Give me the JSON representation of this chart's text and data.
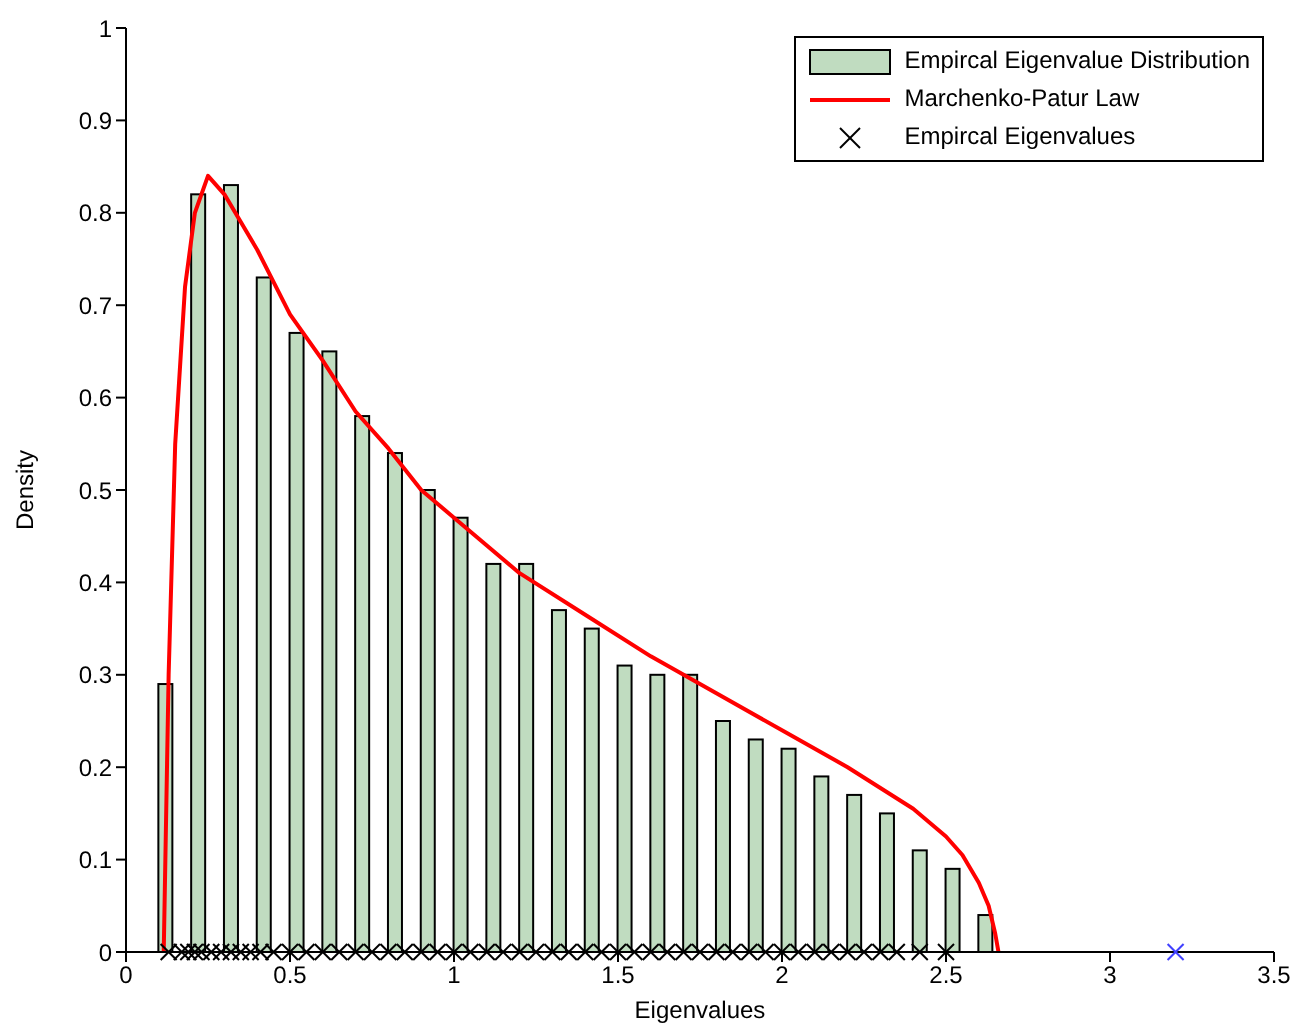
{
  "chart_data": {
    "type": "bar",
    "xlabel": "Eigenvalues",
    "ylabel": "Density",
    "xlim": [
      0,
      3.5
    ],
    "xticks": [
      0,
      0.5,
      1,
      1.5,
      2,
      2.5,
      3,
      3.5
    ],
    "ylim": [
      0,
      1
    ],
    "yticks": [
      0,
      0.1,
      0.2,
      0.3,
      0.4,
      0.5,
      0.6,
      0.7,
      0.8,
      0.9,
      1
    ],
    "x": [
      0.12,
      0.22,
      0.32,
      0.42,
      0.52,
      0.62,
      0.72,
      0.82,
      0.92,
      1.02,
      1.12,
      1.22,
      1.32,
      1.42,
      1.52,
      1.62,
      1.72,
      1.82,
      1.92,
      2.02,
      2.12,
      2.22,
      2.32,
      2.42,
      2.52,
      2.62
    ],
    "legend": "top right",
    "grid": false,
    "series": [
      {
        "name": "Empircal Eigenvalue Distribution",
        "color": "#c0dcc0",
        "values": [
          0.29,
          0.82,
          0.83,
          0.73,
          0.67,
          0.65,
          0.58,
          0.54,
          0.5,
          0.47,
          0.42,
          0.42,
          0.37,
          0.35,
          0.31,
          0.3,
          0.3,
          0.25,
          0.23,
          0.22,
          0.19,
          0.17,
          0.15,
          0.11,
          0.09,
          0.04
        ]
      },
      {
        "name": "Marchenko-Patur Law",
        "type": "line",
        "color": "#ff0000",
        "marker": "none",
        "line_style": "solid",
        "x": [
          0.115,
          0.12,
          0.13,
          0.15,
          0.18,
          0.21,
          0.25,
          0.3,
          0.4,
          0.5,
          0.6,
          0.7,
          0.8,
          0.9,
          1.0,
          1.2,
          1.4,
          1.6,
          1.8,
          2.0,
          2.2,
          2.4,
          2.5,
          2.55,
          2.6,
          2.63,
          2.65,
          2.66
        ],
        "values": [
          0,
          0.1,
          0.3,
          0.55,
          0.72,
          0.8,
          0.84,
          0.82,
          0.76,
          0.69,
          0.64,
          0.585,
          0.545,
          0.5,
          0.47,
          0.41,
          0.365,
          0.32,
          0.28,
          0.24,
          0.2,
          0.155,
          0.125,
          0.105,
          0.075,
          0.05,
          0.02,
          0
        ]
      },
      {
        "name": "Empircal Eigenvalues",
        "type": "scatter",
        "color": "#000000",
        "marker": "cross",
        "x": [
          0.13,
          0.17,
          0.19,
          0.21,
          0.23,
          0.26,
          0.29,
          0.32,
          0.35,
          0.38,
          0.41,
          0.45,
          0.5,
          0.55,
          0.6,
          0.65,
          0.7,
          0.75,
          0.8,
          0.85,
          0.9,
          0.95,
          1.0,
          1.05,
          1.1,
          1.15,
          1.2,
          1.25,
          1.3,
          1.35,
          1.4,
          1.45,
          1.5,
          1.55,
          1.6,
          1.65,
          1.7,
          1.75,
          1.8,
          1.85,
          1.9,
          1.95,
          2.0,
          2.05,
          2.1,
          2.15,
          2.2,
          2.25,
          2.3,
          2.35,
          2.42,
          2.5,
          3.2
        ],
        "values": [
          0,
          0,
          0,
          0,
          0,
          0,
          0,
          0,
          0,
          0,
          0,
          0,
          0,
          0,
          0,
          0,
          0,
          0,
          0,
          0,
          0,
          0,
          0,
          0,
          0,
          0,
          0,
          0,
          0,
          0,
          0,
          0,
          0,
          0,
          0,
          0,
          0,
          0,
          0,
          0,
          0,
          0,
          0,
          0,
          0,
          0,
          0,
          0,
          0,
          0,
          0,
          0,
          0
        ],
        "colors": [
          "#000000",
          "#000000",
          "#000000",
          "#000000",
          "#000000",
          "#000000",
          "#000000",
          "#000000",
          "#000000",
          "#000000",
          "#000000",
          "#000000",
          "#000000",
          "#000000",
          "#000000",
          "#000000",
          "#000000",
          "#000000",
          "#000000",
          "#000000",
          "#000000",
          "#000000",
          "#000000",
          "#000000",
          "#000000",
          "#000000",
          "#000000",
          "#000000",
          "#000000",
          "#000000",
          "#000000",
          "#000000",
          "#000000",
          "#000000",
          "#000000",
          "#000000",
          "#000000",
          "#000000",
          "#000000",
          "#000000",
          "#000000",
          "#000000",
          "#000000",
          "#000000",
          "#000000",
          "#000000",
          "#000000",
          "#000000",
          "#000000",
          "#000000",
          "#000000",
          "#000000",
          "#4040ff"
        ]
      }
    ]
  }
}
